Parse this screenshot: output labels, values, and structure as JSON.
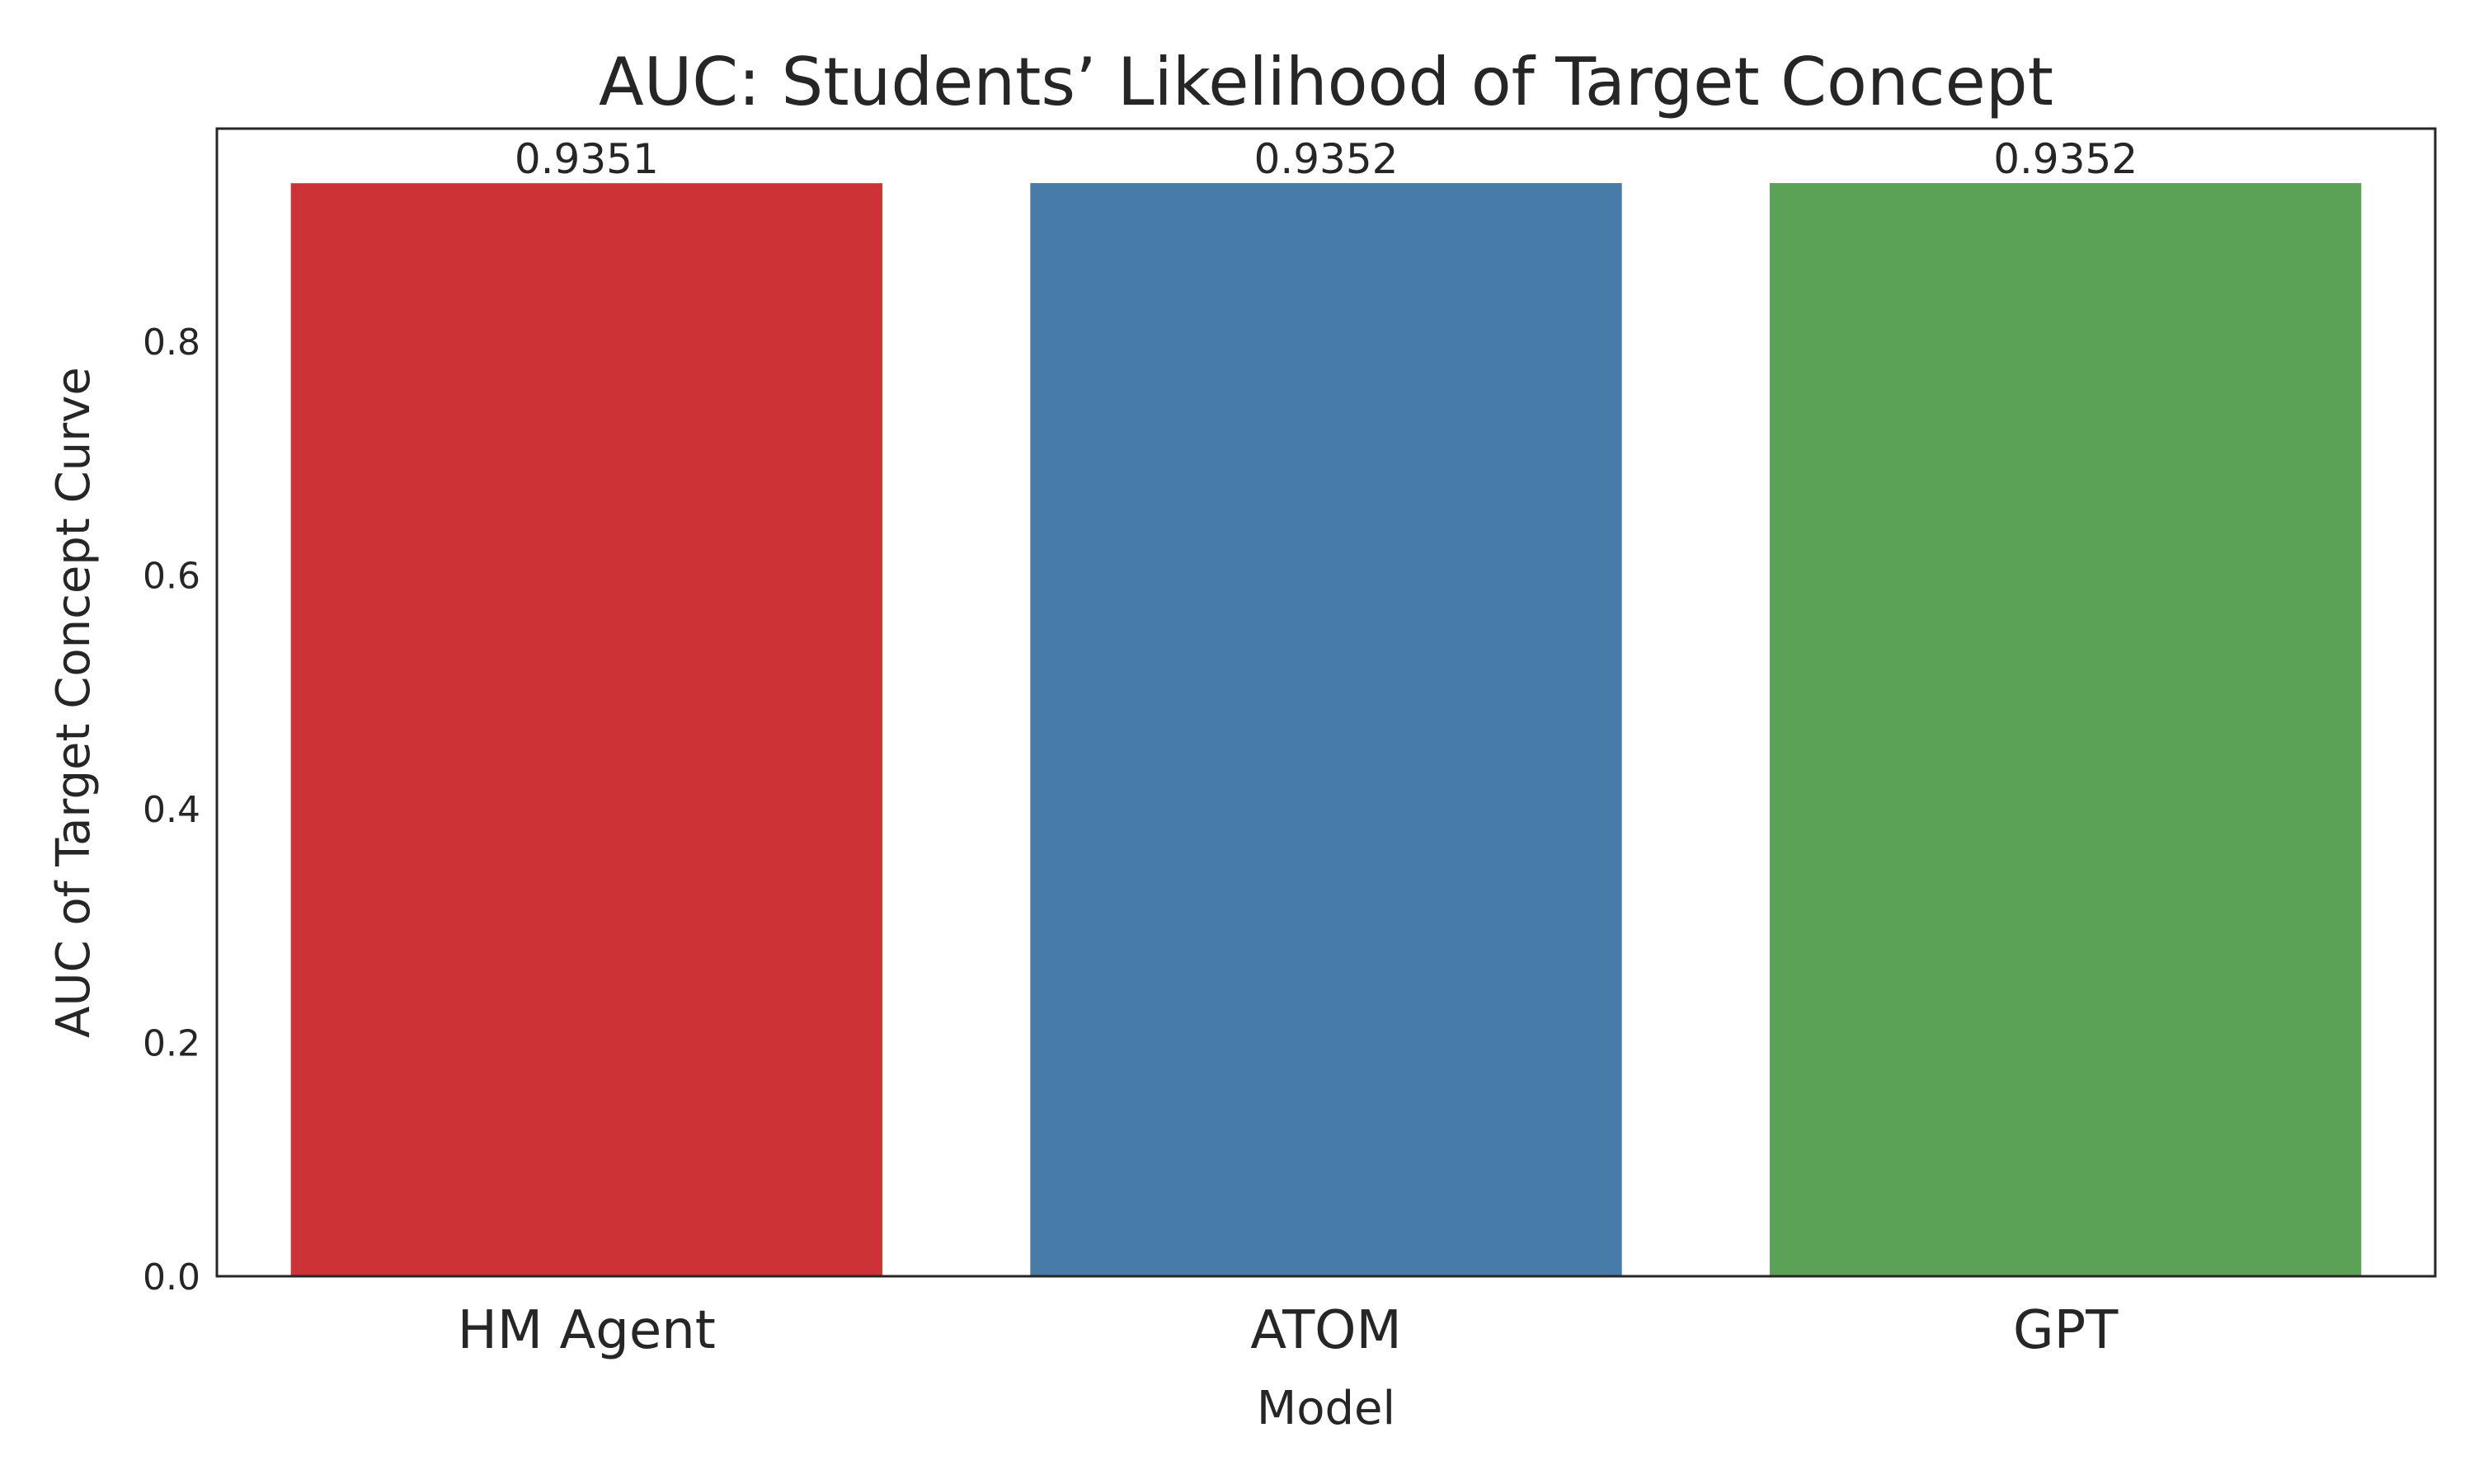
{
  "chart_data": {
    "type": "bar",
    "title": "AUC: Students’ Likelihood of Target Concept",
    "xlabel": "Model",
    "ylabel": "AUC of Target Concept Curve",
    "categories": [
      "HM Agent",
      "ATOM",
      "GPT"
    ],
    "values": [
      0.9351,
      0.9352,
      0.9352
    ],
    "value_labels": [
      "0.9351",
      "0.9352",
      "0.9352"
    ],
    "colors": [
      "#cc3236",
      "#477ba8",
      "#5ba257"
    ],
    "ylim": [
      0,
      0.9818
    ],
    "yticks": [
      0.0,
      0.2,
      0.4,
      0.6,
      0.8
    ],
    "ytick_labels": [
      "0.0",
      "0.2",
      "0.4",
      "0.6",
      "0.8"
    ],
    "grid": false,
    "legend": "none"
  }
}
